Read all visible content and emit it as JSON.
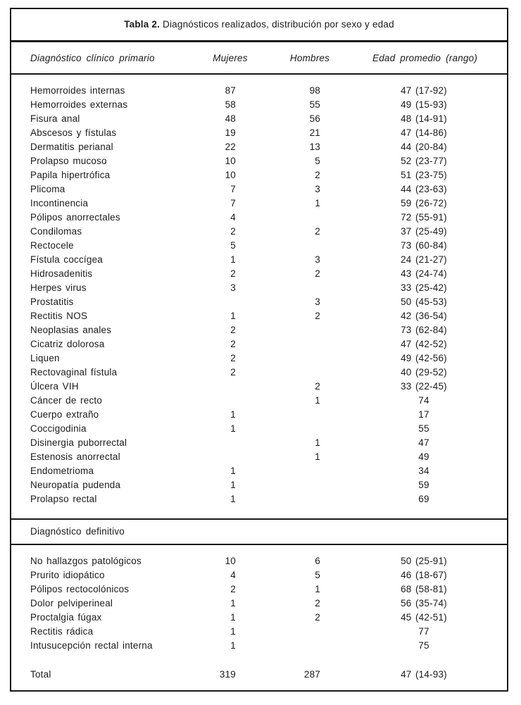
{
  "table": {
    "title": {
      "number": "Tabla 2.",
      "text": " Diagnósticos realizados, distribución por sexo y edad"
    },
    "columns": {
      "diagnostico": "Diagnóstico clínico primario",
      "mujeres": "Mujeres",
      "hombres": "Hombres",
      "edad": "Edad promedio (rango)"
    },
    "primary_section": {
      "rows": [
        {
          "diagnostico": "Hemorroides internas",
          "mujeres": "87",
          "hombres": "98",
          "edad": "47 (17-92)"
        },
        {
          "diagnostico": "Hemorroides externas",
          "mujeres": "58",
          "hombres": "55",
          "edad": "49 (15-93)"
        },
        {
          "diagnostico": "Fisura anal",
          "mujeres": "48",
          "hombres": "56",
          "edad": "48 (14-91)"
        },
        {
          "diagnostico": "Abscesos y fístulas",
          "mujeres": "19",
          "hombres": "21",
          "edad": "47 (14-86)"
        },
        {
          "diagnostico": "Dermatitis perianal",
          "mujeres": "22",
          "hombres": "13",
          "edad": "44 (20-84)"
        },
        {
          "diagnostico": "Prolapso mucoso",
          "mujeres": "10",
          "hombres": "5",
          "edad": "52 (23-77)"
        },
        {
          "diagnostico": "Papila hipertrófica",
          "mujeres": "10",
          "hombres": "2",
          "edad": "51 (23-75)"
        },
        {
          "diagnostico": "Plicoma",
          "mujeres": "7",
          "hombres": "3",
          "edad": "44 (23-63)"
        },
        {
          "diagnostico": "Incontinencia",
          "mujeres": "7",
          "hombres": "1",
          "edad": "59 (26-72)"
        },
        {
          "diagnostico": "Pólipos anorrectales",
          "mujeres": "4",
          "hombres": "",
          "edad": "72 (55-91)"
        },
        {
          "diagnostico": "Condilomas",
          "mujeres": "2",
          "hombres": "2",
          "edad": "37 (25-49)"
        },
        {
          "diagnostico": "Rectocele",
          "mujeres": "5",
          "hombres": "",
          "edad": "73 (60-84)"
        },
        {
          "diagnostico": "Fístula coccígea",
          "mujeres": "1",
          "hombres": "3",
          "edad": "24 (21-27)"
        },
        {
          "diagnostico": "Hidrosadenitis",
          "mujeres": "2",
          "hombres": "2",
          "edad": "43 (24-74)"
        },
        {
          "diagnostico": "Herpes virus",
          "mujeres": "3",
          "hombres": "",
          "edad": "33 (25-42)"
        },
        {
          "diagnostico": "Prostatitis",
          "mujeres": "",
          "hombres": "3",
          "edad": "50 (45-53)"
        },
        {
          "diagnostico": "Rectitis NOS",
          "mujeres": "1",
          "hombres": "2",
          "edad": "42 (36-54)"
        },
        {
          "diagnostico": "Neoplasias anales",
          "mujeres": "2",
          "hombres": "",
          "edad": "73 (62-84)"
        },
        {
          "diagnostico": "Cicatriz dolorosa",
          "mujeres": "2",
          "hombres": "",
          "edad": "47 (42-52)"
        },
        {
          "diagnostico": "Liquen",
          "mujeres": "2",
          "hombres": "",
          "edad": "49 (42-56)"
        },
        {
          "diagnostico": "Rectovaginal fístula",
          "mujeres": "2",
          "hombres": "",
          "edad": "40 (29-52)"
        },
        {
          "diagnostico": "Úlcera VIH",
          "mujeres": "",
          "hombres": "2",
          "edad": "33 (22-45)"
        },
        {
          "diagnostico": "Cáncer de recto",
          "mujeres": "",
          "hombres": "1",
          "edad": "74"
        },
        {
          "diagnostico": "Cuerpo extraño",
          "mujeres": "1",
          "hombres": "",
          "edad": "17"
        },
        {
          "diagnostico": "Coccigodinia",
          "mujeres": "1",
          "hombres": "",
          "edad": "55"
        },
        {
          "diagnostico": "Disinergia puborrectal",
          "mujeres": "",
          "hombres": "1",
          "edad": "47"
        },
        {
          "diagnostico": "Estenosis anorrectal",
          "mujeres": "",
          "hombres": "1",
          "edad": "49"
        },
        {
          "diagnostico": "Endometrioma",
          "mujeres": "1",
          "hombres": "",
          "edad": "34"
        },
        {
          "diagnostico": "Neuropatía pudenda",
          "mujeres": "1",
          "hombres": "",
          "edad": "59"
        },
        {
          "diagnostico": "Prolapso rectal",
          "mujeres": "1",
          "hombres": "",
          "edad": "69"
        }
      ]
    },
    "definitive_section": {
      "header": "Diagnóstico definitivo",
      "rows": [
        {
          "diagnostico": "No hallazgos patológicos",
          "mujeres": "10",
          "hombres": "6",
          "edad": "50 (25-91)"
        },
        {
          "diagnostico": "Prurito idiopático",
          "mujeres": "4",
          "hombres": "5",
          "edad": "46 (18-67)"
        },
        {
          "diagnostico": "Pólipos rectocolónicos",
          "mujeres": "2",
          "hombres": "1",
          "edad": "68 (58-81)"
        },
        {
          "diagnostico": "Dolor pelviperineal",
          "mujeres": "1",
          "hombres": "2",
          "edad": "56 (35-74)"
        },
        {
          "diagnostico": "Proctalgia fúgax",
          "mujeres": "1",
          "hombres": "2",
          "edad": "45 (42-51)"
        },
        {
          "diagnostico": "Rectitis rádica",
          "mujeres": "1",
          "hombres": "",
          "edad": "77"
        },
        {
          "diagnostico": "Intusucepción rectal interna",
          "mujeres": "1",
          "hombres": "",
          "edad": "75"
        }
      ]
    },
    "total": {
      "label": "Total",
      "mujeres": "319",
      "hombres": "287",
      "edad": "47 (14-93)"
    }
  },
  "colors": {
    "border": "#181818",
    "text": "#1a1a1a",
    "background": "#ffffff"
  }
}
